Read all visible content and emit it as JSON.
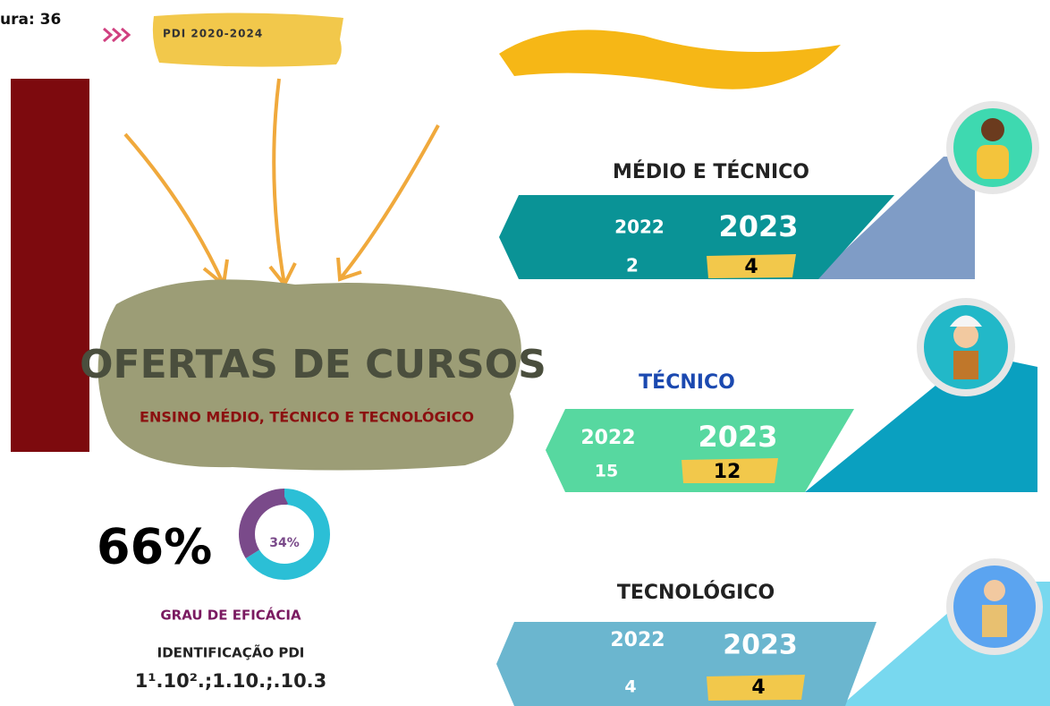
{
  "header": {
    "figure_label": "ura: 36",
    "tag": "PDI 2020-2024"
  },
  "main": {
    "title": "OFERTAS DE CURSOS",
    "subtitle": "ENSINO MÉDIO, TÉCNICO E TECNOLÓGICO"
  },
  "efficacy": {
    "main": {
      "value": 66,
      "label": "66%"
    },
    "rest": {
      "value": 34,
      "label": "34%"
    },
    "label": "GRAU DE EFICÁCIA",
    "id_label": "IDENTIFICAÇÃO PDI",
    "id_code": "1¹.10².;1.10.;.10.3"
  },
  "cards": [
    {
      "title": "MÉDIO E TÉCNICO",
      "year_a": "2022",
      "year_b": "2023",
      "value_a": 2,
      "value_b": 4
    },
    {
      "title": "TÉCNICO",
      "year_a": "2022",
      "year_b": "2023",
      "value_a": 15,
      "value_b": 12
    },
    {
      "title": "TECNOLÓGICO",
      "year_a": "2022",
      "year_b": "2023",
      "value_a": 4,
      "value_b": 4
    }
  ]
}
